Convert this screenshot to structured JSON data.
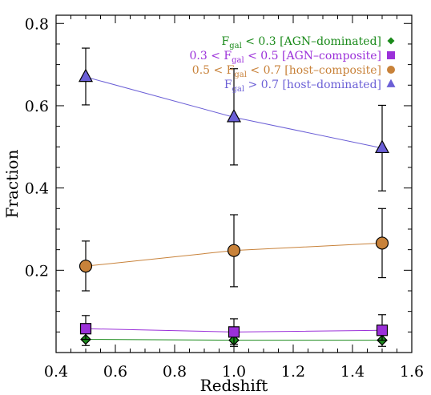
{
  "chart_data": {
    "type": "scatter",
    "xlabel": "Redshift",
    "ylabel": "Fraction",
    "xlim": [
      0.4,
      1.6
    ],
    "ylim": [
      0.0,
      0.82
    ],
    "x_ticks": [
      0.4,
      0.6,
      0.8,
      1.0,
      1.2,
      1.4,
      1.6
    ],
    "y_ticks": [
      0.2,
      0.4,
      0.6,
      0.8
    ],
    "x_tick_labels": [
      "0.4",
      "0.6",
      "0.8",
      "1.0",
      "1.2",
      "1.4",
      "1.6"
    ],
    "y_tick_labels": [
      "0.2",
      "0.4",
      "0.6",
      "0.8"
    ],
    "grid": false,
    "legend_position": "top-right",
    "series": [
      {
        "key": "agn_dominated",
        "legend": {
          "pre": "F",
          "sub": "gal",
          "post": " < 0.3 [AGN–dominated]"
        },
        "marker": "diamond",
        "color": "#1a8a1a",
        "line_color": "#1a8a1a",
        "x": [
          0.5,
          1.0,
          1.5
        ],
        "y": [
          0.032,
          0.03,
          0.03
        ],
        "err_low": [
          0.015,
          0.015,
          0.015
        ],
        "err_high": [
          0.015,
          0.015,
          0.015
        ]
      },
      {
        "key": "agn_composite",
        "legend": {
          "pre": "0.3 < F",
          "sub": "gal",
          "post": " < 0.5 [AGN–composite]"
        },
        "marker": "square",
        "color": "#9b30d9",
        "line_color": "#9b30d9",
        "x": [
          0.5,
          1.0,
          1.5
        ],
        "y": [
          0.058,
          0.05,
          0.054
        ],
        "err_low": [
          0.026,
          0.03,
          0.024
        ],
        "err_high": [
          0.032,
          0.032,
          0.038
        ]
      },
      {
        "key": "host_composite",
        "legend": {
          "pre": "0.5 < F",
          "sub": "gal",
          "post": " < 0.7 [host–composite]"
        },
        "marker": "circle",
        "color": "#c8823a",
        "line_color": "#c8823a",
        "x": [
          0.5,
          1.0,
          1.5
        ],
        "y": [
          0.21,
          0.248,
          0.266
        ],
        "err_low": [
          0.06,
          0.088,
          0.084
        ],
        "err_high": [
          0.061,
          0.087,
          0.084
        ]
      },
      {
        "key": "host_dominated",
        "legend": {
          "pre": "F",
          "sub": "gal",
          "post": " > 0.7 [host–dominated]"
        },
        "marker": "triangle",
        "color": "#6b5fd6",
        "line_color": "#6b5fd6",
        "x": [
          0.5,
          1.0,
          1.5
        ],
        "y": [
          0.67,
          0.572,
          0.497
        ],
        "err_low": [
          0.068,
          0.116,
          0.104
        ],
        "err_high": [
          0.07,
          0.118,
          0.104
        ]
      }
    ]
  }
}
